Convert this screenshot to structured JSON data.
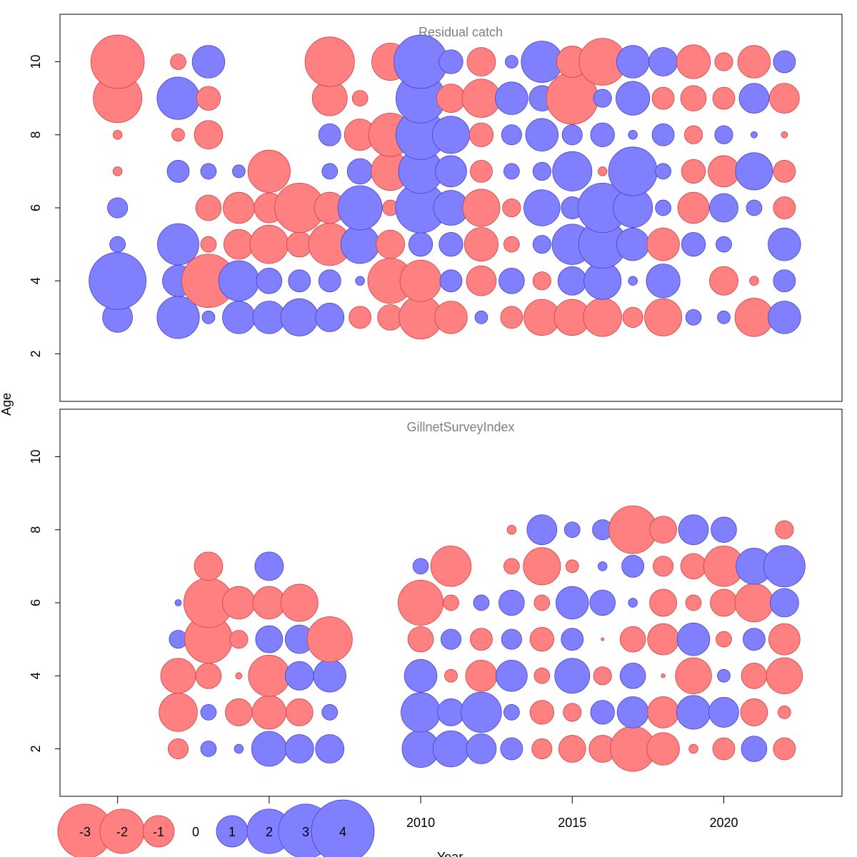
{
  "chart_data": {
    "type": "bubble",
    "xlabel": "Year",
    "ylabel": "Age",
    "xlim": [
      1998.1,
      2023.9
    ],
    "xticks": [
      2000,
      2005,
      2010,
      2015,
      2020
    ],
    "yticks": [
      2,
      4,
      6,
      8,
      10
    ],
    "ylim": [
      0.7,
      11.3
    ],
    "colors": {
      "positive": "#8080ff",
      "negative": "#ff8080",
      "positive_border": "#4040d0",
      "negative_border": "#d04040"
    },
    "legend": [
      {
        "label": "-3",
        "value": -3
      },
      {
        "label": "-2",
        "value": -2
      },
      {
        "label": "-1",
        "value": -1
      },
      {
        "label": "0",
        "value": 0
      },
      {
        "label": "1",
        "value": 1
      },
      {
        "label": "2",
        "value": 2
      },
      {
        "label": "3",
        "value": 3
      },
      {
        "label": "4",
        "value": 4
      }
    ],
    "panels": [
      {
        "title": "Residual catch",
        "ages": [
          3,
          4,
          5,
          6,
          7,
          8,
          9,
          10
        ],
        "years": [
          2000,
          2002,
          2003,
          2004,
          2005,
          2006,
          2007,
          2008,
          2009,
          2010,
          2011,
          2012,
          2013,
          2014,
          2015,
          2016,
          2017,
          2018,
          2019,
          2020,
          2021,
          2022
        ],
        "residuals": {
          "3": [
            1.1,
            2.2,
            0.2,
            1.3,
            1.3,
            1.7,
            1.0,
            -0.6,
            -0.8,
            -2.3,
            -1.3,
            0.2,
            -0.6,
            -1.6,
            -1.6,
            -1.8,
            -0.5,
            -1.7,
            0.3,
            0.2,
            -1.8,
            1.3
          ],
          "4": [
            4.0,
            1.2,
            -3.5,
            2.0,
            0.8,
            0.6,
            0.6,
            0.1,
            -2.5,
            -2.1,
            0.6,
            -1.1,
            0.8,
            -0.4,
            1.0,
            1.7,
            0.1,
            1.4,
            0.0,
            -1.0,
            -0.1,
            0.6
          ],
          "5": [
            0.3,
            2.1,
            -0.3,
            -1.1,
            -1.8,
            -0.8,
            -2.2,
            1.8,
            -1.0,
            0.7,
            0.7,
            -1.4,
            -0.3,
            0.4,
            2.0,
            2.8,
            1.3,
            -1.3,
            0.7,
            0.3,
            0.0,
            1.3
          ],
          "6": [
            0.5,
            0.0,
            -0.8,
            -1.2,
            -1.1,
            -3.0,
            -1.2,
            2.4,
            -0.3,
            3.1,
            1.5,
            -1.7,
            -0.4,
            1.6,
            0.6,
            3.0,
            1.9,
            0.3,
            -1.2,
            1.0,
            0.3,
            -0.6
          ],
          "7": [
            -0.1,
            0.6,
            0.3,
            0.2,
            -2.2,
            0.0,
            0.3,
            0.8,
            -1.8,
            2.4,
            1.2,
            -0.6,
            0.3,
            0.4,
            1.9,
            -0.1,
            2.9,
            0.3,
            -0.7,
            -1.2,
            1.7,
            -0.6
          ],
          "8": [
            -0.1,
            -0.2,
            -1.0,
            0.0,
            0.0,
            0.0,
            0.6,
            -1.2,
            -2.3,
            3.0,
            1.7,
            -0.7,
            0.5,
            1.3,
            0.5,
            0.7,
            0.1,
            0.6,
            -0.4,
            0.4,
            0.05,
            -0.05
          ],
          "9": [
            -2.9,
            2.2,
            -0.7,
            0.0,
            0.0,
            0.0,
            -1.5,
            -0.3,
            0.0,
            3.0,
            -1.0,
            -1.8,
            1.3,
            0.8,
            -3.3,
            0.4,
            1.4,
            -0.6,
            -0.8,
            -0.6,
            1.1,
            -1.1
          ],
          "10": [
            -3.5,
            -0.3,
            1.3,
            0.0,
            0.0,
            0.0,
            -3.0,
            0.0,
            -1.7,
            3.5,
            0.7,
            -1.0,
            0.2,
            2.1,
            -1.2,
            -2.7,
            1.3,
            1.0,
            -1.4,
            -0.4,
            -1.3,
            0.6
          ]
        }
      },
      {
        "title": "GillnetSurveyIndex",
        "ages": [
          2,
          3,
          4,
          5,
          6,
          7,
          8
        ],
        "years": [
          2002,
          2003,
          2004,
          2005,
          2006,
          2007,
          2010,
          2011,
          2012,
          2013,
          2014,
          2015,
          2016,
          2017,
          2018,
          2019,
          2020,
          2021,
          2022
        ],
        "residuals": {
          "2": [
            -0.5,
            0.3,
            0.1,
            1.5,
            1.0,
            1.0,
            1.7,
            1.6,
            1.1,
            0.6,
            -0.5,
            -0.9,
            -0.9,
            -2.5,
            -1.3,
            -0.1,
            -0.6,
            0.8,
            -0.6
          ],
          "3": [
            -1.8,
            0.3,
            -0.9,
            -1.4,
            -0.9,
            0.3,
            1.9,
            0.9,
            2.0,
            0.3,
            -0.7,
            -0.4,
            0.7,
            1.2,
            -1.2,
            1.4,
            1.1,
            -0.9,
            -0.2
          ],
          "4": [
            -1.5,
            -0.8,
            -0.05,
            -2.1,
            1.0,
            1.3,
            1.3,
            -0.2,
            -1.2,
            1.2,
            -0.3,
            1.5,
            -0.4,
            0.8,
            -0.02,
            -1.6,
            0.2,
            -0.8,
            -1.6
          ],
          "5": [
            0.4,
            -2.8,
            -0.4,
            0.9,
            1.0,
            -2.5,
            -0.8,
            0.5,
            -0.6,
            0.5,
            -0.7,
            0.6,
            -0.01,
            -0.8,
            -1.2,
            1.3,
            -0.3,
            0.6,
            -1.2
          ],
          "6": [
            0.05,
            -3.0,
            -1.3,
            -1.3,
            -1.7,
            0.0,
            -2.5,
            -0.3,
            0.3,
            0.8,
            -0.3,
            1.3,
            0.8,
            0.1,
            -0.9,
            -0.3,
            -0.9,
            -1.8,
            1.0
          ],
          "7": [
            0.0,
            -1.0,
            0.0,
            1.0,
            0.0,
            0.0,
            0.3,
            -2.0,
            0.0,
            -0.3,
            -1.7,
            -0.2,
            0.1,
            0.6,
            -0.5,
            -0.8,
            -2.0,
            1.6,
            2.1
          ],
          "8": [
            0.0,
            0.0,
            0.0,
            0.0,
            0.0,
            0.0,
            0.0,
            0.0,
            0.0,
            -0.1,
            1.1,
            0.3,
            0.5,
            -2.8,
            -0.9,
            1.1,
            0.8,
            0.0,
            -0.4
          ]
        }
      }
    ]
  }
}
